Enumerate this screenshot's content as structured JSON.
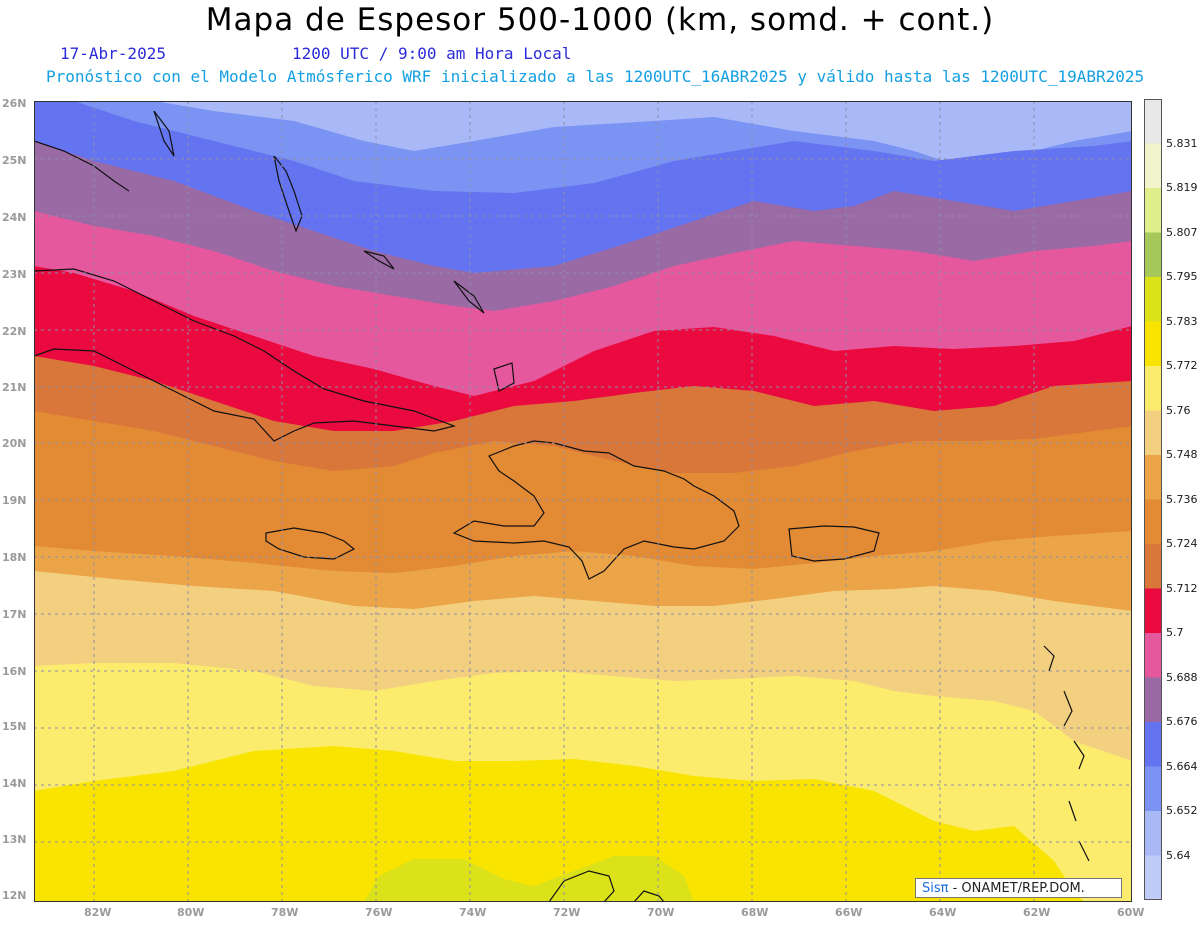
{
  "title": "Mapa de Espesor 500-1000 (km, somd. + cont.)",
  "date": "17-Abr-2025",
  "time": "1200 UTC / 9:00 am Hora Local",
  "forecast_note": "Pronóstico con el Modelo Atmósferico WRF inicializado a las 1200UTC_16ABR2025 y válido hasta las  1200UTC_19ABR2025",
  "credit": {
    "logo": "Sisπ",
    "text": "- ONAMET/REP.DOM."
  },
  "lat_labels": [
    "26N",
    "25N",
    "24N",
    "23N",
    "22N",
    "21N",
    "20N",
    "19N",
    "18N",
    "17N",
    "16N",
    "15N",
    "14N",
    "13N",
    "12N"
  ],
  "lon_labels": [
    "82W",
    "80W",
    "78W",
    "76W",
    "74W",
    "72W",
    "70W",
    "68W",
    "66W",
    "64W",
    "62W",
    "60W"
  ],
  "colorbar": {
    "levels": [
      "5.831",
      "5.819",
      "5.807",
      "5.795",
      "5.783",
      "5.772",
      "5.76",
      "5.748",
      "5.736",
      "5.724",
      "5.712",
      "5.7",
      "5.688",
      "5.676",
      "5.664",
      "5.652",
      "5.64"
    ],
    "colors": [
      "#e8e8e8",
      "#f2f4cc",
      "#dfef8c",
      "#a6c85a",
      "#dbe21a",
      "#f9e400",
      "#fbec6e",
      "#f3d07f",
      "#eba448",
      "#e38a34",
      "#d9773a",
      "#ea0a40",
      "#e6589e",
      "#9a6aa5",
      "#6473ef",
      "#7b94f4",
      "#a9b8f6",
      "#c0ccf8"
    ]
  },
  "map": {
    "region": "Caribe",
    "projection": "lat-lon",
    "lat_range": [
      "12N",
      "26N"
    ],
    "lon_range": [
      "83W",
      "60W"
    ],
    "variable": "Espesor 500-1000 hPa",
    "units": "km"
  }
}
